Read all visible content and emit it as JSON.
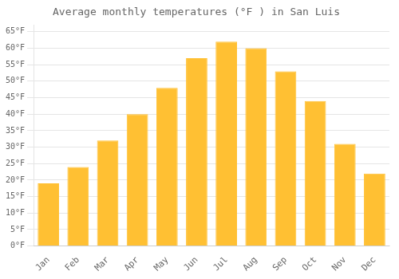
{
  "chart_data": {
    "type": "bar",
    "title": "Average monthly temperatures (°F ) in San Luis",
    "categories": [
      "Jan",
      "Feb",
      "Mar",
      "Apr",
      "May",
      "Jun",
      "Jul",
      "Aug",
      "Sep",
      "Oct",
      "Nov",
      "Dec"
    ],
    "values": [
      19,
      24,
      32,
      40,
      48,
      57,
      62,
      60,
      53,
      44,
      31,
      22
    ],
    "color": "#FFC033",
    "ylim": [
      0,
      67
    ],
    "yticks": [
      {
        "value": 0,
        "label": "0°F"
      },
      {
        "value": 5,
        "label": "5°F"
      },
      {
        "value": 10,
        "label": "10°F"
      },
      {
        "value": 15,
        "label": "15°F"
      },
      {
        "value": 20,
        "label": "20°F"
      },
      {
        "value": 25,
        "label": "25°F"
      },
      {
        "value": 30,
        "label": "30°F"
      },
      {
        "value": 35,
        "label": "35°F"
      },
      {
        "value": 40,
        "label": "40°F"
      },
      {
        "value": 45,
        "label": "45°F"
      },
      {
        "value": 50,
        "label": "50°F"
      },
      {
        "value": 55,
        "label": "55°F"
      },
      {
        "value": 60,
        "label": "60°F"
      },
      {
        "value": 65,
        "label": "65°F"
      }
    ],
    "grid": true
  }
}
